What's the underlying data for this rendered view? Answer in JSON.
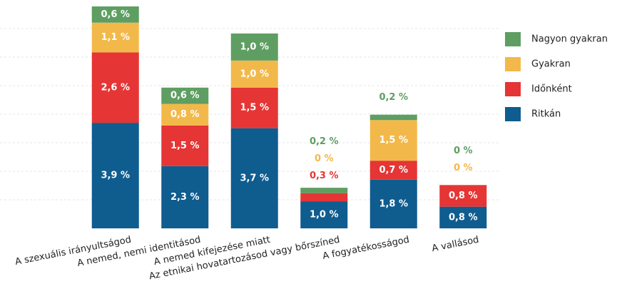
{
  "chart_data": {
    "type": "stacked_bar",
    "categories": [
      "A szexuális irányultságod",
      "A nemed, nemi identitásod",
      "A nemed kifejezése miatt",
      "Az etnikai hovatartozásod vagy bőrszíned",
      "A fogyatékosságod",
      "A vallásod"
    ],
    "series": [
      {
        "name": "Ritkán",
        "color": "#0f5c8f",
        "values": [
          3.9,
          2.3,
          3.7,
          1.0,
          1.8,
          0.8
        ],
        "value_labels": [
          "3,9 %",
          "2,3 %",
          "3,7 %",
          "1,0 %",
          "1,8 %",
          "0,8 %"
        ]
      },
      {
        "name": "Időnként",
        "color": "#e53535",
        "values": [
          2.6,
          1.5,
          1.5,
          0.3,
          0.7,
          0.8
        ],
        "value_labels": [
          "2,6 %",
          "1,5 %",
          "1,5 %",
          "0,3 %",
          "0,7 %",
          "0,8 %"
        ]
      },
      {
        "name": "Gyakran",
        "color": "#f2b94a",
        "values": [
          1.1,
          0.8,
          1.0,
          0,
          1.5,
          0
        ],
        "value_labels": [
          "1,1 %",
          "0,8 %",
          "1,0 %",
          "0 %",
          "1,5 %",
          "0 %"
        ]
      },
      {
        "name": "Nagyon gyakran",
        "color": "#5e9e62",
        "values": [
          0.6,
          0.6,
          1.0,
          0.2,
          0.2,
          0
        ],
        "value_labels": [
          "0,6 %",
          "0,6 %",
          "1,0 %",
          "0,2 %",
          "0,2 %",
          "0 %"
        ]
      }
    ],
    "ylim": [
      0,
      8.2
    ],
    "legend": "right"
  }
}
